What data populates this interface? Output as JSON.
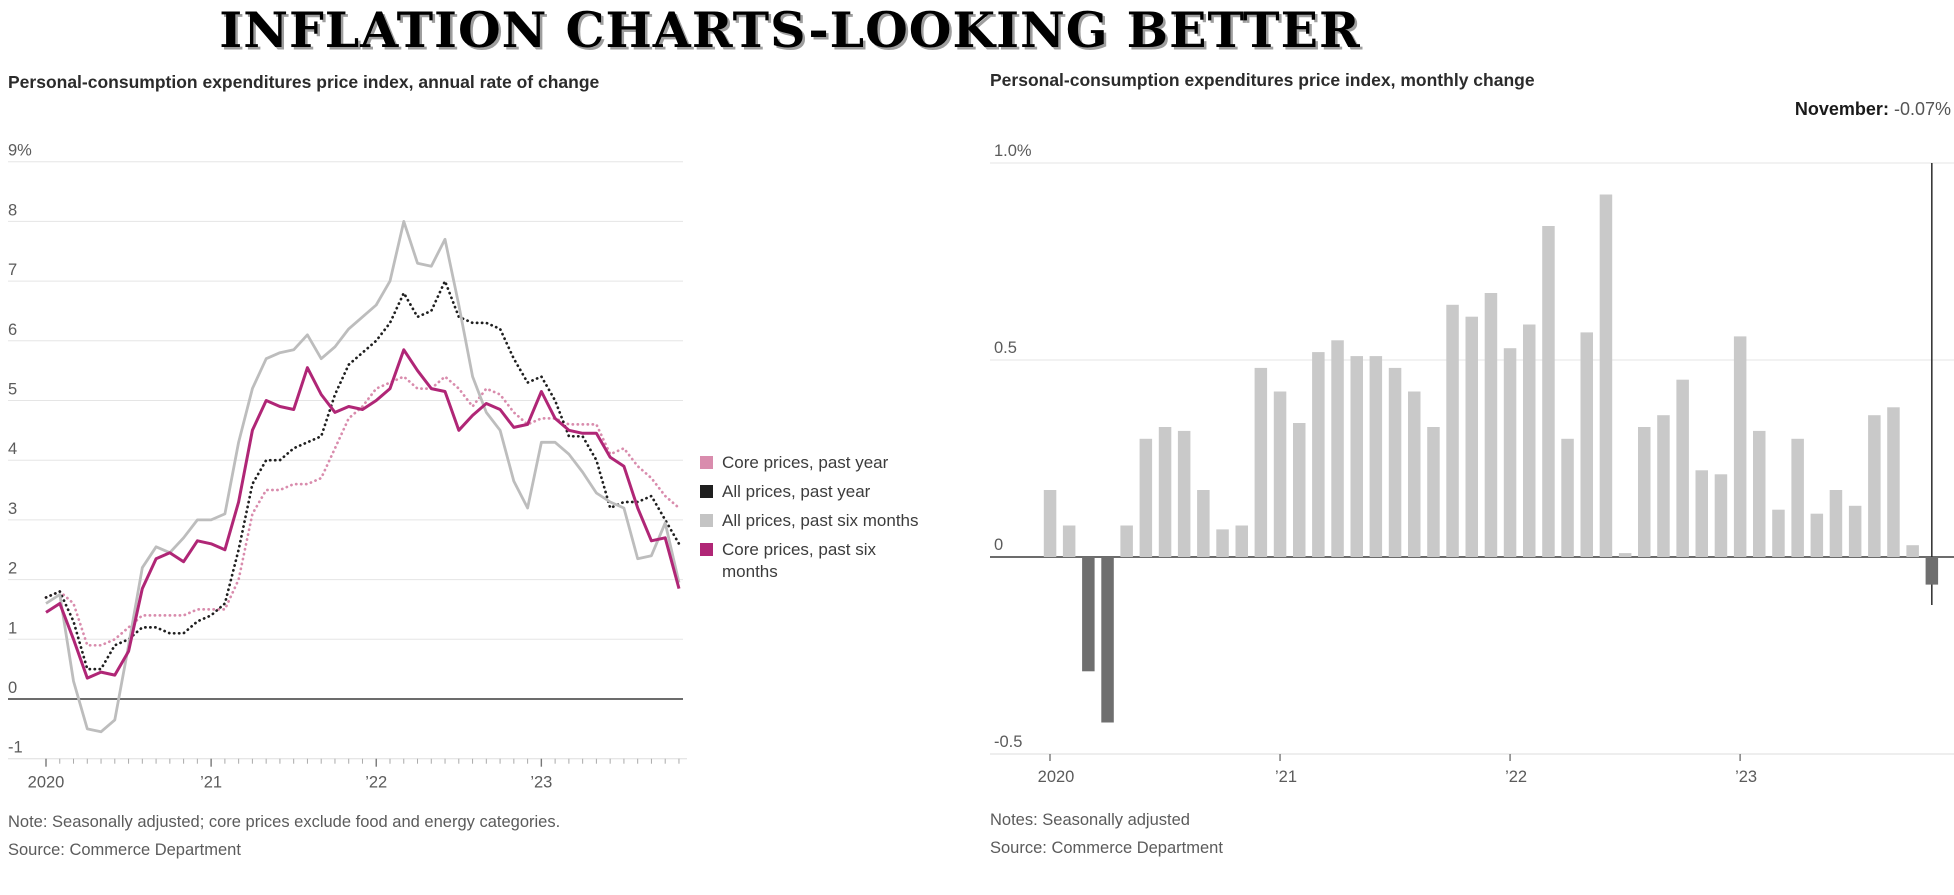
{
  "page_title": "INFLATION CHARTS-LOOKING BETTER",
  "left_chart": {
    "title": "Personal-consumption expenditures price index, annual rate of change",
    "note": "Note: Seasonally adjusted; core prices exclude food and energy categories.",
    "source": "Source: Commerce Department",
    "legend": [
      {
        "label": "Core prices, past year",
        "color": "#d98cad"
      },
      {
        "label": "All prices, past year",
        "color": "#1f1f1f"
      },
      {
        "label": "All prices, past six months",
        "color": "#c4c4c4"
      },
      {
        "label": "Core prices, past six months",
        "color": "#b02676"
      }
    ]
  },
  "right_chart": {
    "title": "Personal-consumption expenditures price index, monthly change",
    "notes": "Notes: Seasonally adjusted",
    "source": "Source: Commerce Department"
  },
  "chart_data": [
    {
      "type": "line",
      "title": "Personal-consumption expenditures price index, annual rate of change",
      "x_frequency": "monthly",
      "x_start": "Jan 2020",
      "x_end": "Nov 2023",
      "x_tick_labels": [
        "2020",
        "’21",
        "’22",
        "’23"
      ],
      "y_tick_labels": [
        "9%",
        "8",
        "7",
        "6",
        "5",
        "4",
        "3",
        "2",
        "1",
        "0",
        "-1"
      ],
      "ylim": [
        -1,
        9
      ],
      "grid": true,
      "legend_position": "right",
      "series": [
        {
          "name": "Core prices, past year",
          "color": "#d98cad",
          "style": "dotted",
          "values": [
            1.7,
            1.8,
            1.6,
            0.9,
            0.9,
            1.0,
            1.2,
            1.4,
            1.4,
            1.4,
            1.4,
            1.5,
            1.5,
            1.5,
            2.0,
            3.1,
            3.5,
            3.5,
            3.6,
            3.6,
            3.7,
            4.2,
            4.7,
            4.9,
            5.2,
            5.3,
            5.4,
            5.2,
            5.2,
            5.4,
            5.2,
            4.9,
            5.2,
            5.1,
            4.8,
            4.6,
            4.7,
            4.7,
            4.6,
            4.6,
            4.6,
            4.1,
            4.2,
            3.9,
            3.7,
            3.4,
            3.2
          ]
        },
        {
          "name": "All prices, past year",
          "color": "#1f1f1f",
          "style": "dotted",
          "values": [
            1.7,
            1.8,
            1.3,
            0.5,
            0.5,
            0.9,
            1.0,
            1.2,
            1.2,
            1.1,
            1.1,
            1.3,
            1.4,
            1.6,
            2.5,
            3.6,
            4.0,
            4.0,
            4.2,
            4.3,
            4.4,
            5.1,
            5.6,
            5.8,
            6.0,
            6.3,
            6.8,
            6.4,
            6.5,
            7.0,
            6.4,
            6.3,
            6.3,
            6.2,
            5.7,
            5.3,
            5.4,
            5.0,
            4.4,
            4.4,
            4.0,
            3.2,
            3.3,
            3.3,
            3.4,
            3.0,
            2.6
          ]
        },
        {
          "name": "All prices, past six months",
          "color": "#bdbdbd",
          "style": "solid",
          "values": [
            1.6,
            1.75,
            0.3,
            -0.5,
            -0.55,
            -0.35,
            0.9,
            2.2,
            2.55,
            2.45,
            2.7,
            3.0,
            3.0,
            3.1,
            4.3,
            5.2,
            5.7,
            5.8,
            5.85,
            6.1,
            5.7,
            5.9,
            6.2,
            6.4,
            6.6,
            7.0,
            8.0,
            7.3,
            7.25,
            7.7,
            6.6,
            5.4,
            4.8,
            4.5,
            3.65,
            3.2,
            4.3,
            4.3,
            4.1,
            3.8,
            3.45,
            3.3,
            3.2,
            2.35,
            2.4,
            2.95,
            1.95
          ]
        },
        {
          "name": "Core prices, past six months",
          "color": "#b02676",
          "style": "solid",
          "values": [
            1.45,
            1.6,
            1.0,
            0.35,
            0.45,
            0.4,
            0.8,
            1.85,
            2.35,
            2.45,
            2.3,
            2.65,
            2.6,
            2.5,
            3.3,
            4.5,
            5.0,
            4.9,
            4.85,
            5.55,
            5.1,
            4.8,
            4.9,
            4.85,
            5.0,
            5.2,
            5.85,
            5.5,
            5.2,
            5.15,
            4.5,
            4.75,
            4.95,
            4.85,
            4.55,
            4.6,
            5.15,
            4.7,
            4.5,
            4.45,
            4.45,
            4.05,
            3.9,
            3.2,
            2.65,
            2.7,
            1.85
          ]
        }
      ]
    },
    {
      "type": "bar",
      "title": "Personal-consumption expenditures price index, monthly change",
      "x_frequency": "monthly",
      "x_start": "Jan 2020",
      "x_end": "Nov 2023",
      "x_tick_labels": [
        "2020",
        "’21",
        "’22",
        "’23"
      ],
      "y_tick_labels": [
        "1.0%",
        "0.5",
        "0",
        "-0.5"
      ],
      "ylim": [
        -0.5,
        1.0
      ],
      "grid": true,
      "bar_color": "#c9c9c9",
      "negative_bar_color": "#6f6f6f",
      "values": [
        0.17,
        0.08,
        -0.29,
        -0.42,
        0.08,
        0.3,
        0.33,
        0.32,
        0.17,
        0.07,
        0.08,
        0.48,
        0.42,
        0.34,
        0.52,
        0.55,
        0.51,
        0.51,
        0.48,
        0.42,
        0.33,
        0.64,
        0.61,
        0.67,
        0.53,
        0.59,
        0.84,
        0.3,
        0.57,
        0.92,
        0.01,
        0.33,
        0.36,
        0.45,
        0.22,
        0.21,
        0.56,
        0.32,
        0.12,
        0.3,
        0.11,
        0.17,
        0.13,
        0.36,
        0.38,
        0.03,
        -0.07
      ],
      "highlight": {
        "label": "November:",
        "value": "-0.07%",
        "month_index": 46
      }
    }
  ]
}
